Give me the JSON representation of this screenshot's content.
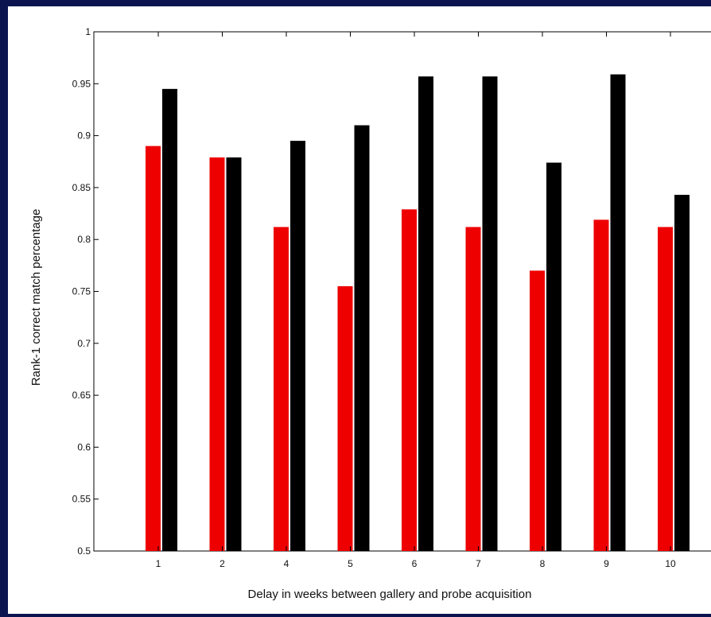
{
  "colors": {
    "background": "#0c1450",
    "panel": "#ffffff",
    "series_colors": [
      "#ee0000",
      "#000000"
    ]
  },
  "chart_data": {
    "type": "bar",
    "title": "",
    "xlabel": "Delay in weeks between gallery and probe acquisition",
    "ylabel": "Rank-1 correct match percentage",
    "categories": [
      "1",
      "2",
      "4",
      "5",
      "6",
      "7",
      "8",
      "9",
      "10"
    ],
    "ylim": [
      0.5,
      1
    ],
    "yticks": [
      "0.5",
      "0.55",
      "0.6",
      "0.65",
      "0.7",
      "0.75",
      "0.8",
      "0.85",
      "0.9",
      "0.95",
      "1"
    ],
    "grid": false,
    "legend": "none",
    "series": [
      {
        "values": [
          0.89,
          0.879,
          0.812,
          0.755,
          0.829,
          0.812,
          0.77,
          0.819,
          0.812
        ]
      },
      {
        "values": [
          0.945,
          0.879,
          0.895,
          0.91,
          0.957,
          0.957,
          0.874,
          0.959,
          0.843
        ]
      }
    ]
  }
}
